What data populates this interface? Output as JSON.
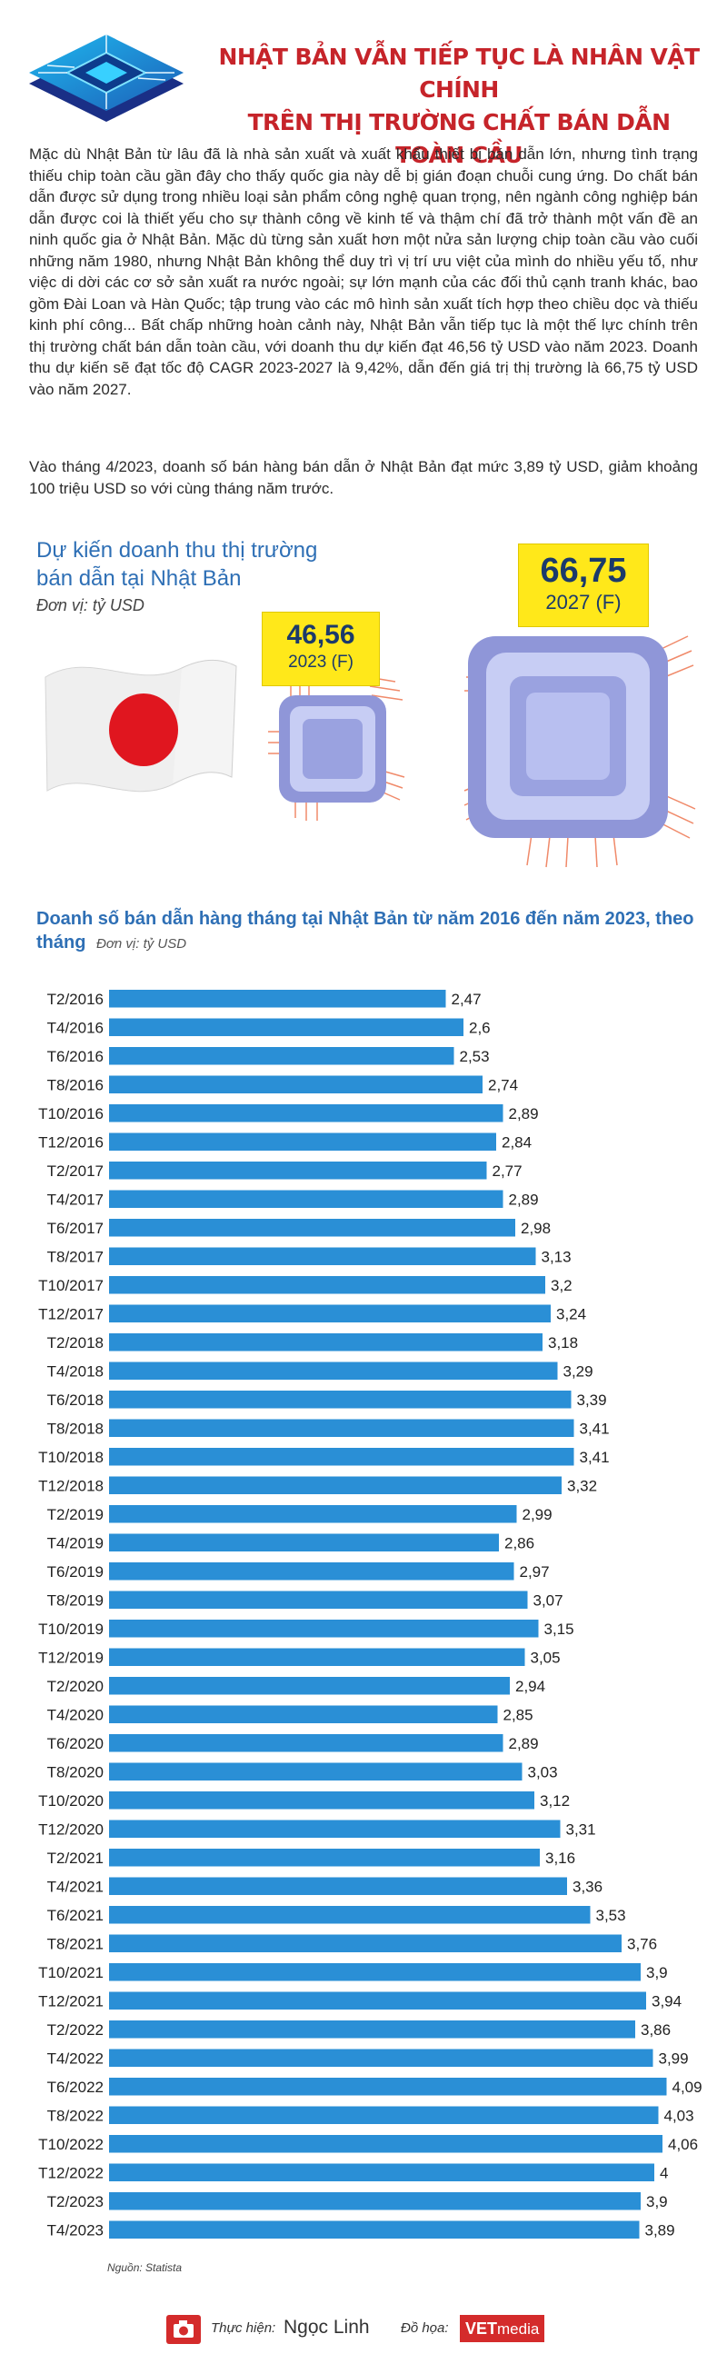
{
  "header": {
    "title_line1": "NHẬT BẢN VẪN TIẾP TỤC LÀ NHÂN VẬT CHÍNH",
    "title_line2": "TRÊN THỊ TRƯỜNG CHẤT BÁN DẪN TOÀN CẦU"
  },
  "article": {
    "paragraph1": "Mặc dù Nhật Bản từ lâu đã là nhà sản xuất và xuất khẩu thiết bị bán dẫn lớn, nhưng tình trạng thiếu chip toàn cầu gần đây cho thấy quốc gia này dễ bị gián đoạn chuỗi cung ứng. Do chất bán dẫn được sử dụng trong nhiều loại sản phẩm công nghệ quan trọng, nên ngành công nghiệp bán dẫn được coi là thiết yếu cho sự thành công về kinh tế và thậm chí đã trở thành một vấn đề an ninh quốc gia ở Nhật Bản. Mặc dù từng sản xuất hơn một nửa sản lượng chip toàn cầu vào cuối những năm 1980, nhưng Nhật Bản không thể duy trì vị trí ưu việt của mình do nhiều yếu tố, như việc di dời các cơ sở sản xuất ra nước ngoài; sự lớn mạnh của các đối thủ cạnh tranh khác, bao gồm Đài Loan và Hàn Quốc; tập trung vào các mô hình sản xuất tích hợp theo chiều dọc và thiếu kinh phí công... Bất chấp những hoàn cảnh này, Nhật Bản vẫn tiếp tục là một thế lực chính trên thị trường chất bán dẫn toàn cầu, với doanh thu dự kiến đạt 46,56 tỷ USD vào năm 2023. Doanh thu dự kiến sẽ đạt tốc độ CAGR 2023-2027 là 9,42%, dẫn đến giá trị thị trường là 66,75 tỷ USD vào năm 2027.",
    "paragraph2": "Vào tháng 4/2023, doanh số bán hàng bán dẫn ở Nhật Bản đạt mức 3,89 tỷ USD, giảm khoảng 100 triệu USD so với cùng tháng năm trước."
  },
  "forecast": {
    "title": "Dự kiến doanh thu thị trường bán dẫn tại Nhật Bản",
    "unit": "Đơn vị: tỷ USD",
    "items": [
      {
        "value": "46,56",
        "year": "2023 (F)"
      },
      {
        "value": "66,75",
        "year": "2027 (F)"
      }
    ]
  },
  "bar_section": {
    "title": "Doanh số bán dẫn hàng tháng tại Nhật Bản từ năm 2016 đến năm 2023, theo tháng",
    "unit": "Đơn vị: tỷ USD",
    "source": "Nguồn: Statista"
  },
  "colors": {
    "title_red": "#c6242a",
    "accent_blue": "#2e6fb5",
    "bar_blue": "#2a8fd6",
    "highlight_yellow": "#ffe81a"
  },
  "chart_data": [
    {
      "type": "bar",
      "orientation": "horizontal",
      "title": "Dự kiến doanh thu thị trường bán dẫn tại Nhật Bản",
      "unit": "tỷ USD",
      "categories": [
        "2023 (F)",
        "2027 (F)"
      ],
      "values": [
        46.56,
        66.75
      ]
    },
    {
      "type": "bar",
      "orientation": "horizontal",
      "title": "Doanh số bán dẫn hàng tháng tại Nhật Bản từ năm 2016 đến năm 2023, theo tháng",
      "unit": "tỷ USD",
      "grid": false,
      "xlim": [
        0,
        4.2
      ],
      "categories": [
        "T2/2016",
        "T4/2016",
        "T6/2016",
        "T8/2016",
        "T10/2016",
        "T12/2016",
        "T2/2017",
        "T4/2017",
        "T6/2017",
        "T8/2017",
        "T10/2017",
        "T12/2017",
        "T2/2018",
        "T4/2018",
        "T6/2018",
        "T8/2018",
        "T10/2018",
        "T12/2018",
        "T2/2019",
        "T4/2019",
        "T6/2019",
        "T8/2019",
        "T10/2019",
        "T12/2019",
        "T2/2020",
        "T4/2020",
        "T6/2020",
        "T8/2020",
        "T10/2020",
        "T12/2020",
        "T2/2021",
        "T4/2021",
        "T6/2021",
        "T8/2021",
        "T10/2021",
        "T12/2021",
        "T2/2022",
        "T4/2022",
        "T6/2022",
        "T8/2022",
        "T10/2022",
        "T12/2022",
        "T2/2023",
        "T4/2023"
      ],
      "values": [
        2.47,
        2.6,
        2.53,
        2.74,
        2.89,
        2.84,
        2.77,
        2.89,
        2.98,
        3.13,
        3.2,
        3.24,
        3.18,
        3.29,
        3.39,
        3.41,
        3.41,
        3.32,
        2.99,
        2.86,
        2.97,
        3.07,
        3.15,
        3.05,
        2.94,
        2.85,
        2.89,
        3.03,
        3.12,
        3.31,
        3.16,
        3.36,
        3.53,
        3.76,
        3.9,
        3.94,
        3.86,
        3.99,
        4.09,
        4.03,
        4.06,
        4,
        3.9,
        3.89
      ],
      "value_labels": [
        "2,47",
        "2,6",
        "2,53",
        "2,74",
        "2,89",
        "2,84",
        "2,77",
        "2,89",
        "2,98",
        "3,13",
        "3,2",
        "3,24",
        "3,18",
        "3,29",
        "3,39",
        "3,41",
        "3,41",
        "3,32",
        "2,99",
        "2,86",
        "2,97",
        "3,07",
        "3,15",
        "3,05",
        "2,94",
        "2,85",
        "2,89",
        "3,03",
        "3,12",
        "3,31",
        "3,16",
        "3,36",
        "3,53",
        "3,76",
        "3,9",
        "3,94",
        "3,86",
        "3,99",
        "4,09",
        "4,03",
        "4,06",
        "4",
        "3,9",
        "3,89"
      ]
    }
  ],
  "footer": {
    "label_author": "Thực hiện:",
    "author": "Ngọc Linh",
    "label_graphic": "Đồ họa:",
    "brand_main": "VET",
    "brand_sub": "media"
  }
}
